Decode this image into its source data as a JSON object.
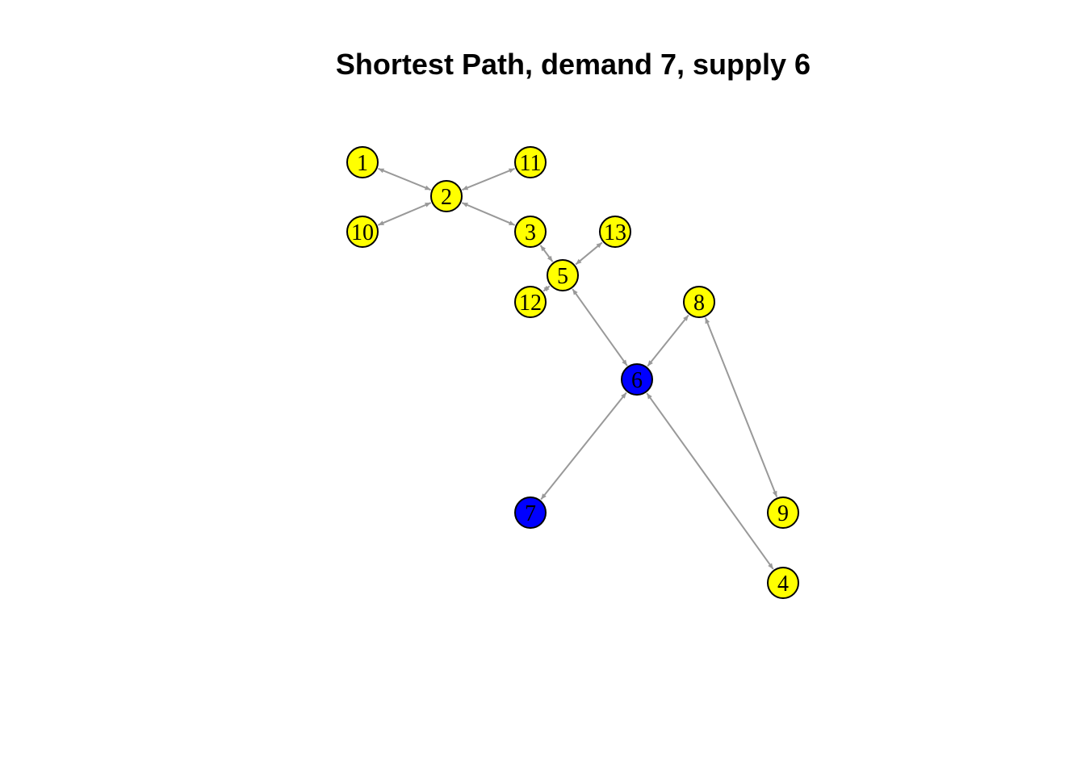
{
  "title": "Shortest Path, demand 7, supply 6",
  "colors": {
    "background": "#ffffff",
    "edge": "#999999",
    "node_default": "#ffff00",
    "node_path": "#0000ff",
    "node_stroke": "#000000",
    "label": "#000000"
  },
  "graph": {
    "directed_arrows": "both",
    "nodes": [
      {
        "id": "1",
        "label": "1",
        "on_path": false
      },
      {
        "id": "2",
        "label": "2",
        "on_path": false
      },
      {
        "id": "3",
        "label": "3",
        "on_path": false
      },
      {
        "id": "4",
        "label": "4",
        "on_path": false
      },
      {
        "id": "5",
        "label": "5",
        "on_path": false
      },
      {
        "id": "6",
        "label": "6",
        "on_path": true
      },
      {
        "id": "7",
        "label": "7",
        "on_path": true
      },
      {
        "id": "8",
        "label": "8",
        "on_path": false
      },
      {
        "id": "9",
        "label": "9",
        "on_path": false
      },
      {
        "id": "10",
        "label": "10",
        "on_path": false
      },
      {
        "id": "11",
        "label": "11",
        "on_path": false
      },
      {
        "id": "12",
        "label": "12",
        "on_path": false
      },
      {
        "id": "13",
        "label": "13",
        "on_path": false
      }
    ],
    "edges": [
      {
        "from": "1",
        "to": "2"
      },
      {
        "from": "11",
        "to": "2"
      },
      {
        "from": "10",
        "to": "2"
      },
      {
        "from": "2",
        "to": "3"
      },
      {
        "from": "3",
        "to": "5"
      },
      {
        "from": "13",
        "to": "5"
      },
      {
        "from": "12",
        "to": "5"
      },
      {
        "from": "5",
        "to": "6"
      },
      {
        "from": "6",
        "to": "8"
      },
      {
        "from": "8",
        "to": "9"
      },
      {
        "from": "6",
        "to": "7"
      },
      {
        "from": "6",
        "to": "4"
      }
    ]
  }
}
